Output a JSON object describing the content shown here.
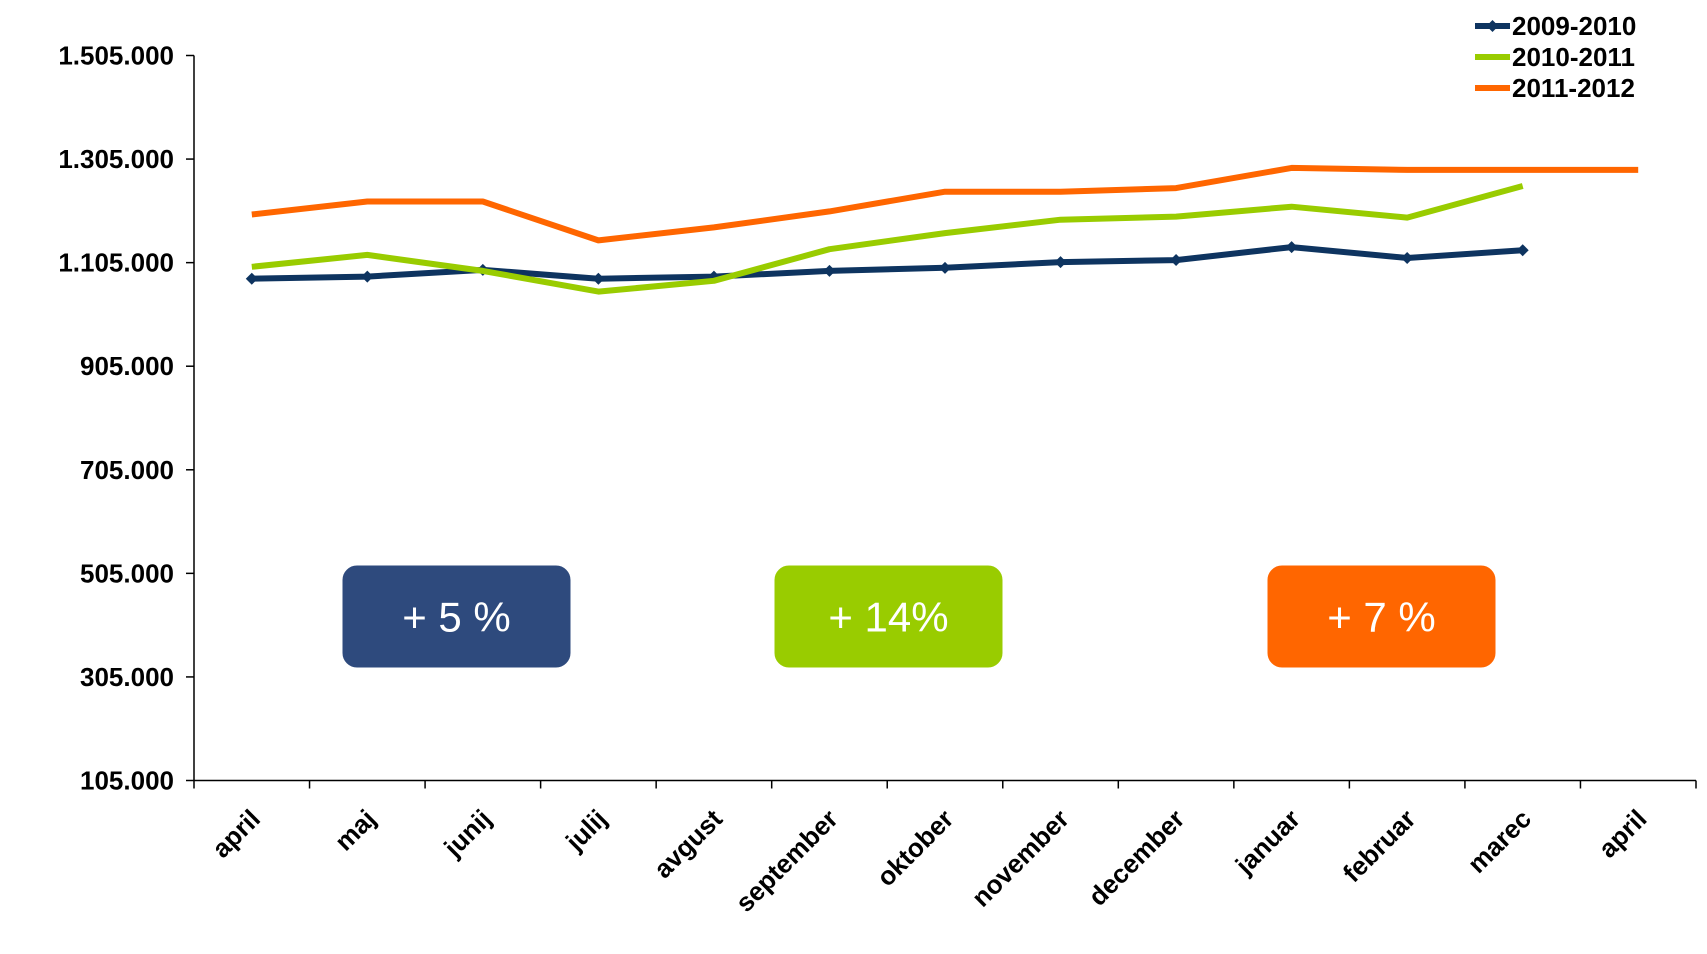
{
  "chart_data": {
    "type": "line",
    "categories": [
      "april",
      "maj",
      "junij",
      "julij",
      "avgust",
      "september",
      "oktober",
      "november",
      "december",
      "januar",
      "februar",
      "marec",
      "april"
    ],
    "series": [
      {
        "name": "2009-2010",
        "color": "#0e3460",
        "markers": true,
        "values": [
          1074000,
          1078000,
          1091000,
          1074000,
          1078000,
          1089000,
          1095000,
          1106000,
          1110000,
          1135000,
          1114000,
          1129000,
          null
        ]
      },
      {
        "name": "2010-2011",
        "color": "#99cc00",
        "markers": false,
        "values": [
          1097000,
          1120000,
          1089000,
          1049000,
          1070000,
          1131000,
          1162000,
          1188000,
          1194000,
          1213000,
          1192000,
          1253000,
          null
        ]
      },
      {
        "name": "2011-2012",
        "color": "#ff6600",
        "markers": false,
        "values": [
          1198000,
          1223000,
          1223000,
          1148000,
          1173000,
          1204000,
          1242000,
          1242000,
          1249000,
          1288000,
          1284000,
          1284000,
          1284000
        ]
      }
    ],
    "ylim": [
      105000,
      1505000
    ],
    "yticks": [
      {
        "value": 105000,
        "label": "105.000"
      },
      {
        "value": 305000,
        "label": "305.000"
      },
      {
        "value": 505000,
        "label": "505.000"
      },
      {
        "value": 705000,
        "label": "705.000"
      },
      {
        "value": 905000,
        "label": "905.000"
      },
      {
        "value": 1105000,
        "label": "1.105.000"
      },
      {
        "value": 1305000,
        "label": "1.305.000"
      },
      {
        "value": 1505000,
        "label": "1.505.000"
      }
    ],
    "grid": false,
    "legend": "top-right",
    "annotations": [
      {
        "text": "+ 5 %",
        "color": "#2e4a7d"
      },
      {
        "text": "+ 14%",
        "color": "#99cc00"
      },
      {
        "text": "+ 7 %",
        "color": "#ff6600"
      }
    ]
  }
}
